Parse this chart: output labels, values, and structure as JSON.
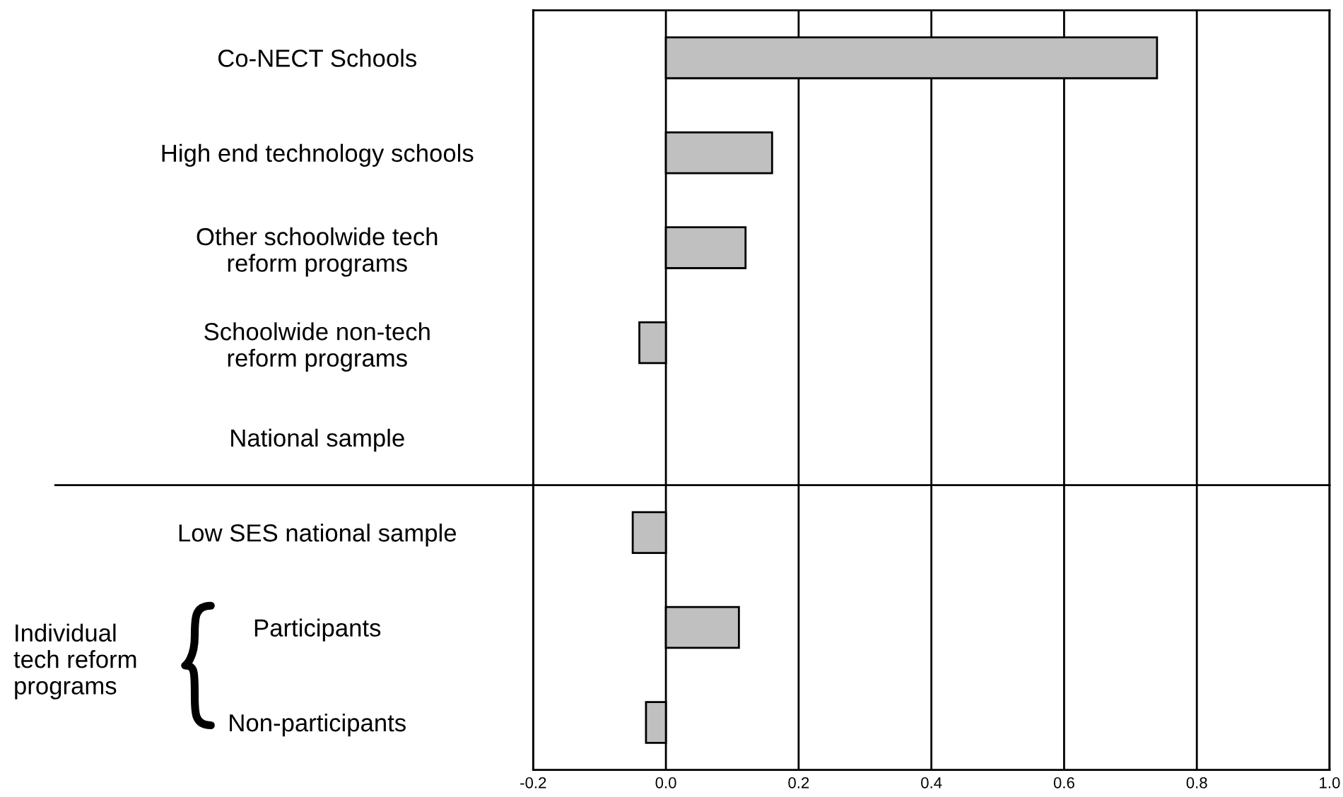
{
  "chart_data": {
    "type": "bar",
    "orientation": "horizontal",
    "categories": [
      "Co-NECT Schools",
      "High end technology schools",
      "Other schoolwide tech\nreform programs",
      "Schoolwide non-tech\nreform programs",
      "National sample",
      "Low SES national sample",
      "Participants",
      "Non-participants"
    ],
    "values": [
      0.74,
      0.16,
      0.12,
      -0.04,
      0,
      -0.05,
      0.11,
      -0.03
    ],
    "color": "#c0c0c0",
    "xlim": [
      -0.2,
      1.0
    ],
    "xticks": [
      {
        "value": -0.2,
        "label": "-0.2"
      },
      {
        "value": 0,
        "label": "0.0"
      },
      {
        "value": 0.2,
        "label": "0.2"
      },
      {
        "value": 0.4,
        "label": "0.4"
      },
      {
        "value": 0.6,
        "label": "0.6"
      },
      {
        "value": 0.8,
        "label": "0.8"
      },
      {
        "value": 1.0,
        "label": "1.0"
      }
    ],
    "grid": "x",
    "annotations": [
      "Individual\ntech reform\nprograms"
    ]
  }
}
